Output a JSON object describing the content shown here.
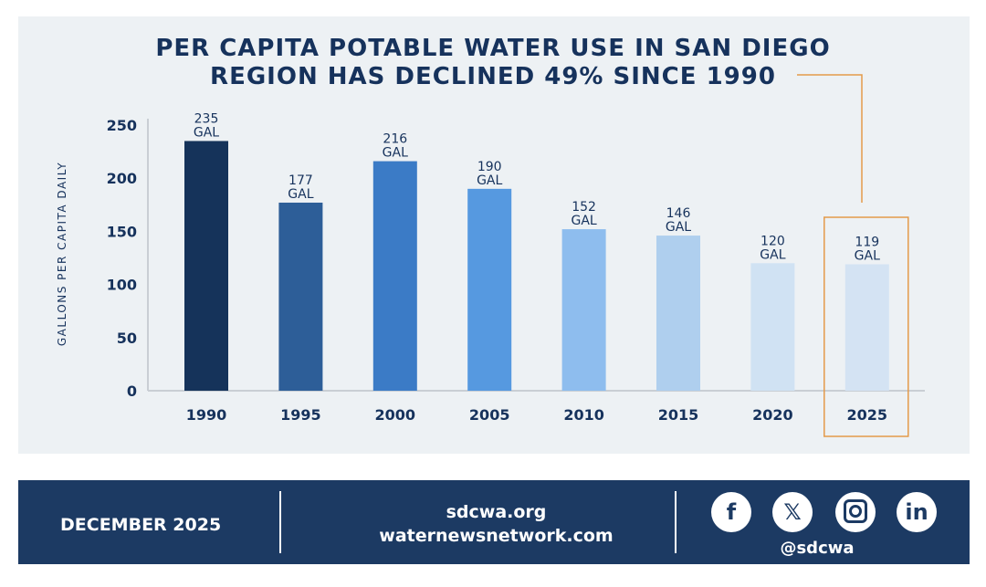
{
  "chart_data": {
    "type": "bar",
    "title": "PER CAPITA POTABLE WATER USE IN SAN DIEGO REGION HAS DECLINED 49% SINCE 1990",
    "title_lines": [
      "PER CAPITA POTABLE WATER USE IN SAN DIEGO",
      "REGION HAS DECLINED 49% SINCE 1990"
    ],
    "ylabel": "GALLONS PER CAPITA DAILY",
    "xlabel": "",
    "ylim": [
      0,
      250
    ],
    "yticks": [
      0,
      50,
      100,
      150,
      200,
      250
    ],
    "categories": [
      "1990",
      "1995",
      "2000",
      "2005",
      "2010",
      "2015",
      "2020",
      "2025"
    ],
    "values": [
      235,
      177,
      216,
      190,
      152,
      146,
      120,
      119
    ],
    "data_label_unit": "GAL",
    "bar_colors": [
      "#15335a",
      "#2d5e98",
      "#3b7bc6",
      "#5699e0",
      "#8ebdee",
      "#afcfee",
      "#d0e2f3",
      "#d4e3f3"
    ],
    "highlight": {
      "category": "2025",
      "color": "#e39a4a"
    },
    "grid": false,
    "legend": "none"
  },
  "footer": {
    "date": "DECEMBER 2025",
    "links": [
      "sdcwa.org",
      "waternewsnetwork.com"
    ],
    "social_icons": [
      "facebook-icon",
      "x-icon",
      "instagram-icon",
      "linkedin-icon"
    ],
    "handle": "@sdcwa"
  }
}
